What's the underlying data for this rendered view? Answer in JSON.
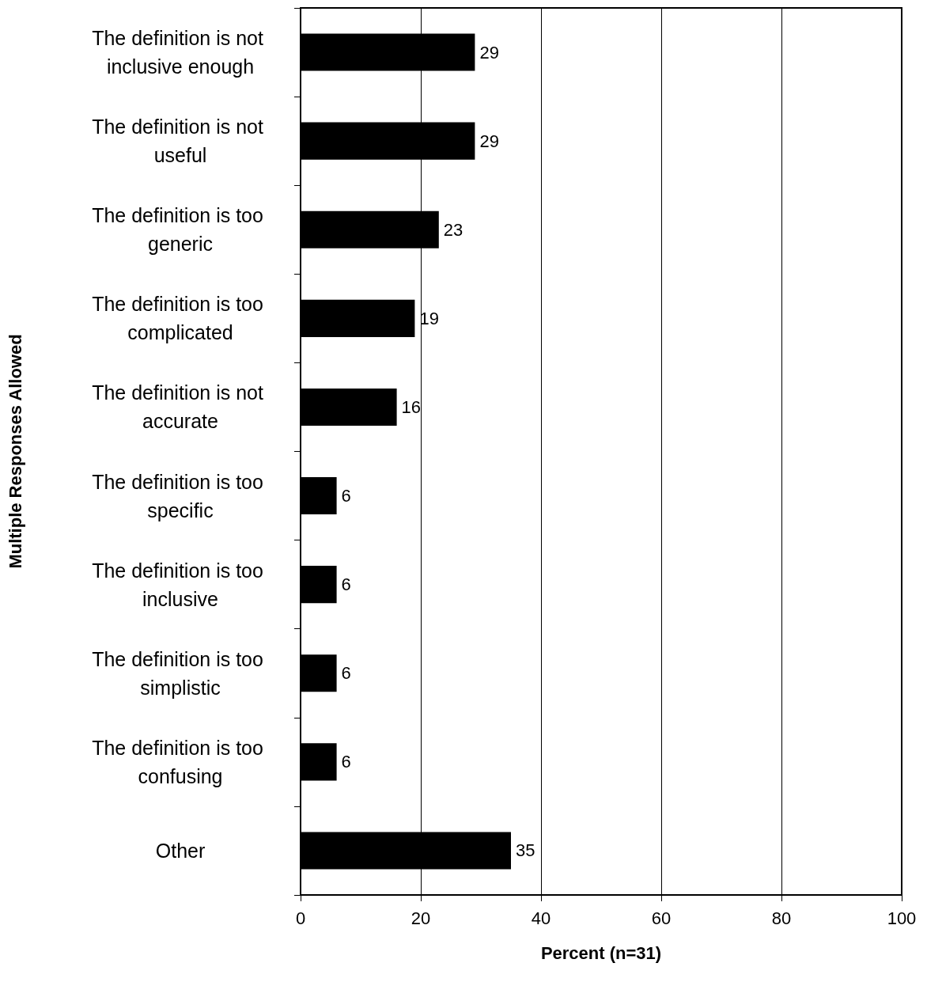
{
  "chart_data": {
    "type": "bar",
    "orientation": "horizontal",
    "categories": [
      "The definition is not inclusive enough",
      "The definition is not useful",
      "The definition is too generic",
      "The definition is too complicated",
      "The definition is not accurate",
      "The definition is too specific",
      "The definition is too inclusive",
      "The definition is too simplistic",
      "The definition is too confusing",
      "Other"
    ],
    "values": [
      29,
      29,
      23,
      19,
      16,
      6,
      6,
      6,
      6,
      35
    ],
    "color": "#000000",
    "xlim": [
      0,
      100
    ],
    "xticks": [
      0,
      20,
      40,
      60,
      80,
      100
    ],
    "xlabel": "Percent (n=31)",
    "ylabel": "Multiple Responses Allowed",
    "grid": "x",
    "data_labels": true
  }
}
